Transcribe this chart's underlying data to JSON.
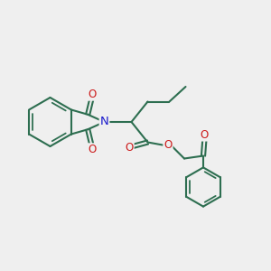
{
  "bg_color": "#efefef",
  "bond_color": "#2d6e50",
  "n_color": "#1a1acc",
  "o_color": "#cc1a1a",
  "line_width": 1.5,
  "font_size_atom": 8.5,
  "xlim": [
    0,
    10
  ],
  "ylim": [
    0,
    10
  ]
}
